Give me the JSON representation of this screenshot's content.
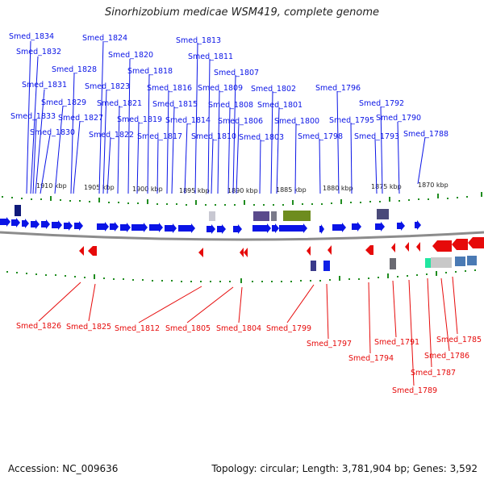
{
  "title": "Sinorhizobium medicae WSM419, complete genome",
  "footer": {
    "accession": "Accession: NC_009636",
    "summary": "Topology: circular; Length: 3,781,904 bp; Genes: 3,592"
  },
  "colors": {
    "forward": "#0a14e6",
    "reverse": "#e60a0a",
    "backbone": "#8c8c8c",
    "tick": "#1f8c1f"
  },
  "ruler_labels": [
    "1910 kbp",
    "1905 kbp",
    "1900 kbp",
    "1895 kbp",
    "1890 kbp",
    "1885 kbp",
    "1880 kbp",
    "1875 kbp",
    "1870 kbp"
  ],
  "top_labels": [
    "Smed_1834",
    "Smed_1832",
    "Smed_1831",
    "Smed_1833",
    "Smed_1830",
    "Smed_1829",
    "Smed_1828",
    "Smed_1827",
    "Smed_1824",
    "Smed_1823",
    "Smed_1822",
    "Smed_1821",
    "Smed_1820",
    "Smed_1819",
    "Smed_1818",
    "Smed_1817",
    "Smed_1816",
    "Smed_1815",
    "Smed_1814",
    "Smed_1813",
    "Smed_1811",
    "Smed_1810",
    "Smed_1809",
    "Smed_1808",
    "Smed_1807",
    "Smed_1806",
    "Smed_1803",
    "Smed_1802",
    "Smed_1801",
    "Smed_1800",
    "Smed_1798",
    "Smed_1796",
    "Smed_1795",
    "Smed_1793",
    "Smed_1792",
    "Smed_1790",
    "Smed_1788"
  ],
  "bottom_labels": [
    "Smed_1826",
    "Smed_1825",
    "Smed_1812",
    "Smed_1805",
    "Smed_1804",
    "Smed_1799",
    "Smed_1797",
    "Smed_1794",
    "Smed_1791",
    "Smed_1789",
    "Smed_1787",
    "Smed_1786",
    "Smed_1785"
  ]
}
